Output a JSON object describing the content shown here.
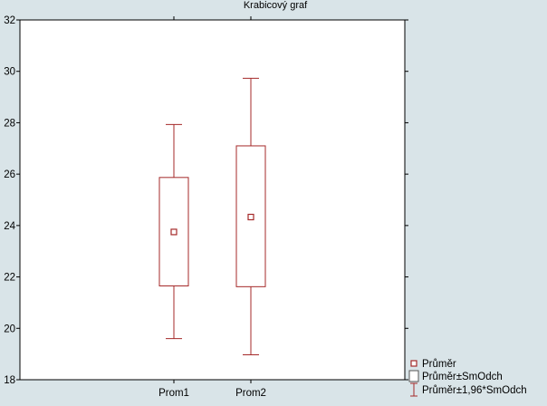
{
  "chart_data": {
    "type": "box",
    "title": "Krabicový graf",
    "xlabel": "",
    "ylabel": "",
    "categories": [
      "Prom1",
      "Prom2"
    ],
    "ylim": [
      18,
      32
    ],
    "yticks": [
      18,
      20,
      22,
      24,
      26,
      28,
      30,
      32
    ],
    "grid": false,
    "legend_position": "bottom-right",
    "series": [
      {
        "category": "Prom1",
        "mean": 23.75,
        "mean_minus_sd": 21.65,
        "mean_plus_sd": 25.87,
        "mean_minus_196sd": 19.6,
        "mean_plus_196sd": 27.93
      },
      {
        "category": "Prom2",
        "mean": 24.33,
        "mean_minus_sd": 21.62,
        "mean_plus_sd": 27.1,
        "mean_minus_196sd": 18.97,
        "mean_plus_196sd": 29.73
      }
    ],
    "legend": [
      {
        "name": "Průměr",
        "symbol": "mean-marker"
      },
      {
        "name": "Průměr±SmOdch",
        "symbol": "box"
      },
      {
        "name": "Průměr±1,96*SmOdch",
        "symbol": "whisker"
      }
    ],
    "colors": {
      "plot_background": "#ffffff",
      "page_background": "#d9e4e8",
      "series": "#a52a2a"
    }
  }
}
